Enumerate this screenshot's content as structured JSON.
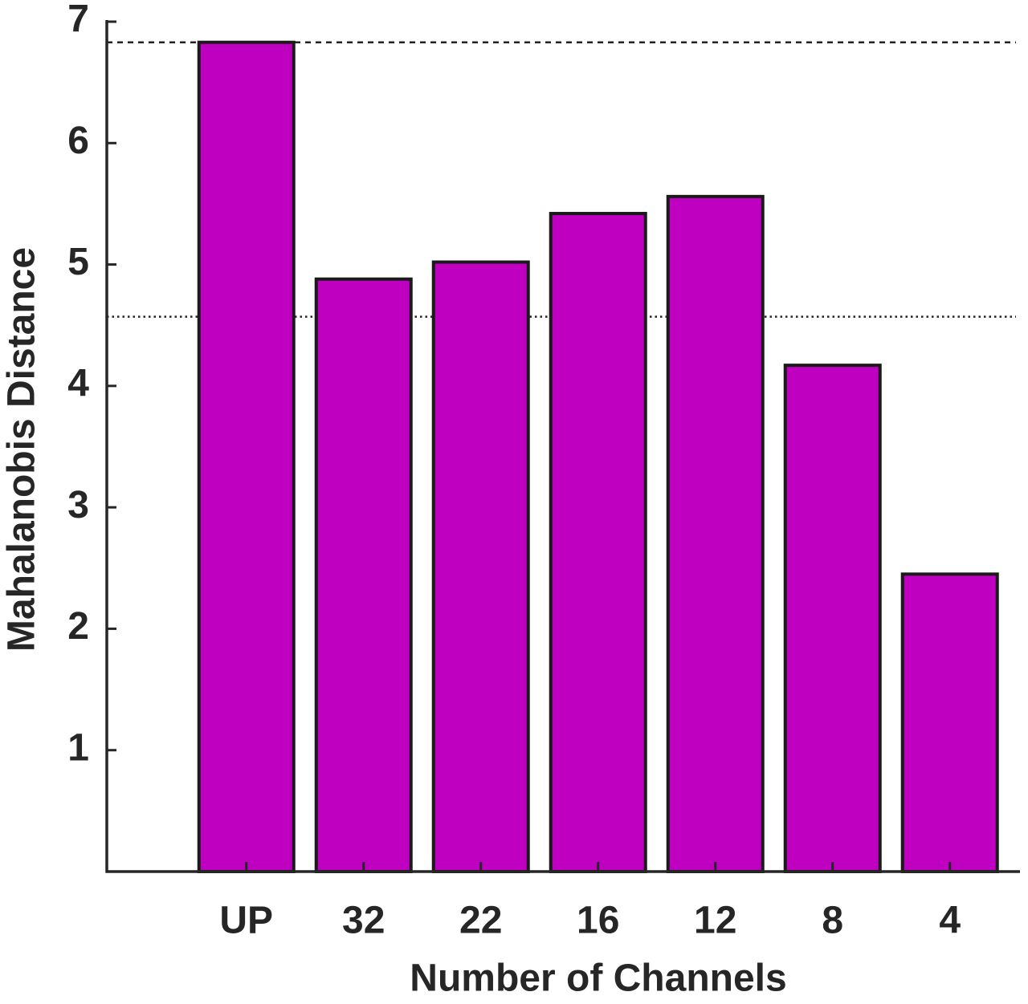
{
  "chart_data": {
    "type": "bar",
    "x_label": "Number of Channels",
    "y_label": "Mahalanobis Distance",
    "categories": [
      "UP",
      "32",
      "22",
      "16",
      "12",
      "8",
      "4"
    ],
    "values": [
      6.83,
      4.88,
      5.02,
      5.42,
      5.56,
      4.17,
      2.45
    ],
    "color": "#c000c0",
    "ylim": [
      0,
      7
    ],
    "yticks": [
      1,
      2,
      3,
      4,
      5,
      6,
      7
    ],
    "reference_lines": [
      {
        "value": 6.83,
        "style": "dashed"
      },
      {
        "value": 4.57,
        "style": "dotted"
      }
    ],
    "grid": false
  }
}
